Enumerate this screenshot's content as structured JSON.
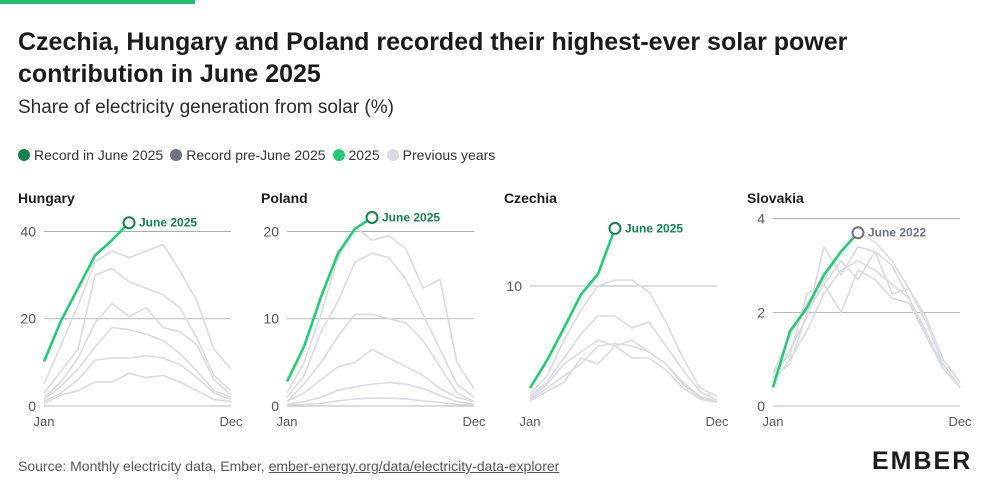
{
  "header": {
    "title": "Czechia, Hungary and Poland recorded their highest-ever solar power contribution in June 2025",
    "subtitle": "Share of electricity generation from solar (%)"
  },
  "legend": [
    {
      "label": "Record in June 2025",
      "color": "#12834a"
    },
    {
      "label": "Record pre-June 2025",
      "color": "#6b7280"
    },
    {
      "label": "2025",
      "color": "#24cc72"
    },
    {
      "label": "Previous years",
      "color": "#d9dbe3"
    }
  ],
  "colors": {
    "current_year": "#24cc72",
    "record_2025": "#12834a",
    "record_pre": "#6b7280",
    "previous": "#d9dbe3",
    "gridline": "#9aa0ac"
  },
  "chart_data": [
    {
      "type": "line",
      "title": "Hungary",
      "x_labels": [
        "Jan",
        "Dec"
      ],
      "months": [
        1,
        2,
        3,
        4,
        5,
        6,
        7,
        8,
        9,
        10,
        11,
        12
      ],
      "yticks": [
        0,
        20,
        40
      ],
      "ylim": [
        0,
        44
      ],
      "series_2025": [
        10.2,
        19.5,
        27,
        34.5,
        38,
        42
      ],
      "previous_years": [
        [
          5,
          14,
          23,
          33,
          35.5,
          34,
          35.5,
          37,
          31,
          24,
          13,
          8.5
        ],
        [
          3,
          8,
          13,
          30,
          31.5,
          28.5,
          27,
          25.5,
          22.5,
          15.5,
          7,
          3.5
        ],
        [
          2,
          5.5,
          11,
          19,
          23.5,
          20.5,
          22.5,
          18,
          17,
          14,
          6,
          2.5
        ],
        [
          1.5,
          4.5,
          8.5,
          13.5,
          18,
          17.5,
          16.5,
          15,
          12,
          8,
          3.5,
          2
        ],
        [
          1,
          3,
          6,
          10.5,
          11,
          11,
          11.5,
          11,
          9.5,
          6.5,
          3,
          1.5
        ],
        [
          0.5,
          2.5,
          3.5,
          5.5,
          5.5,
          7.5,
          6.5,
          7,
          5.5,
          3.5,
          1.5,
          1
        ]
      ],
      "record": {
        "label": "June 2025",
        "month": 6,
        "value": 42,
        "kind": "2025"
      }
    },
    {
      "type": "line",
      "title": "Poland",
      "x_labels": [
        "Jan",
        "Dec"
      ],
      "months": [
        1,
        2,
        3,
        4,
        5,
        6,
        7,
        8,
        9,
        10,
        11,
        12
      ],
      "yticks": [
        0,
        10,
        20
      ],
      "ylim": [
        0,
        22
      ],
      "series_2025": [
        2.8,
        6.8,
        12.5,
        17.5,
        20.3,
        21.6
      ],
      "previous_years": [
        [
          1.5,
          5,
          10.5,
          17,
          20.5,
          19,
          19.5,
          18,
          13.5,
          14.5,
          5,
          2
        ],
        [
          1,
          3.5,
          8.5,
          12,
          16.5,
          17.5,
          17,
          14.5,
          10.5,
          6.5,
          2.5,
          1
        ],
        [
          0.5,
          2.5,
          5,
          8,
          10.5,
          10.5,
          10,
          9.5,
          7.5,
          4.5,
          1.5,
          0.5
        ],
        [
          0.5,
          1.5,
          3,
          4.5,
          5,
          6.5,
          5.5,
          4.5,
          3.5,
          2,
          1,
          0.5
        ],
        [
          0.2,
          0.5,
          1,
          1.8,
          2.2,
          2.5,
          2.7,
          2.5,
          2,
          1.2,
          0.5,
          0.2
        ],
        [
          0.1,
          0.2,
          0.3,
          0.6,
          0.8,
          0.9,
          0.9,
          0.8,
          0.6,
          0.4,
          0.2,
          0.1
        ]
      ],
      "record": {
        "label": "June 2025",
        "month": 6,
        "value": 21.6,
        "kind": "2025"
      }
    },
    {
      "type": "line",
      "title": "Czechia",
      "x_labels": [
        "Jan",
        "Dec"
      ],
      "months": [
        1,
        2,
        3,
        4,
        5,
        6,
        7,
        8,
        9,
        10,
        11,
        12
      ],
      "yticks": [
        10
      ],
      "ylim": [
        0,
        16
      ],
      "series_2025": [
        1.5,
        3.8,
        6.5,
        9.3,
        11,
        14.8
      ],
      "previous_years": [
        [
          1,
          2.5,
          5.5,
          8,
          10,
          10.5,
          10.5,
          9.5,
          7,
          4,
          1.5,
          0.8
        ],
        [
          0.8,
          2,
          4,
          6,
          7.5,
          7.5,
          6.5,
          7,
          5,
          3,
          1.2,
          0.5
        ],
        [
          0.6,
          1.8,
          3.5,
          4.5,
          5.5,
          5,
          5.5,
          4.5,
          3.5,
          2,
          0.8,
          0.4
        ],
        [
          0.5,
          1.5,
          2.5,
          3.5,
          5,
          5.2,
          5,
          4.5,
          3.5,
          1.8,
          0.7,
          0.3
        ],
        [
          0.4,
          1.2,
          2,
          4,
          3.5,
          5,
          4,
          4,
          3,
          1.5,
          0.6,
          0.3
        ]
      ],
      "record": {
        "label": "June 2025",
        "month": 6,
        "value": 14.8,
        "kind": "2025"
      }
    },
    {
      "type": "line",
      "title": "Slovakia",
      "x_labels": [
        "Jan",
        "Dec"
      ],
      "months": [
        1,
        2,
        3,
        4,
        5,
        6,
        7,
        8,
        9,
        10,
        11,
        12
      ],
      "yticks": [
        0,
        2,
        4
      ],
      "ylim": [
        0,
        4.1
      ],
      "series_2025": [
        0.4,
        1.6,
        2.1,
        2.8,
        3.3,
        3.7
      ],
      "previous_years": [
        [
          0.7,
          1.5,
          2.2,
          2.7,
          3.3,
          3.7,
          3.5,
          3.1,
          2.5,
          1.8,
          0.9,
          0.4
        ],
        [
          0.6,
          1.2,
          1.9,
          3.4,
          2.8,
          3.4,
          3.3,
          3,
          2.3,
          1.5,
          0.8,
          0.4
        ],
        [
          0.7,
          1.1,
          2.4,
          2.6,
          3.1,
          2.7,
          3.3,
          2.4,
          2.5,
          1.9,
          1,
          0.5
        ],
        [
          0.5,
          1,
          1.6,
          2.4,
          2.9,
          3.1,
          2.9,
          2.6,
          2.3,
          1.6,
          0.8,
          0.4
        ],
        [
          0.6,
          0.9,
          2,
          2.6,
          2,
          2.9,
          2.7,
          2.3,
          2.2,
          1.5,
          0.9,
          0.4
        ]
      ],
      "record": {
        "label": "June 2022",
        "month": 6,
        "value": 3.7,
        "kind": "pre"
      }
    }
  ],
  "footer": {
    "source_prefix": "Source: Monthly electricity data, Ember, ",
    "source_link": "ember-energy.org/data/electricity-data-explorer",
    "logo": "EMBER"
  }
}
